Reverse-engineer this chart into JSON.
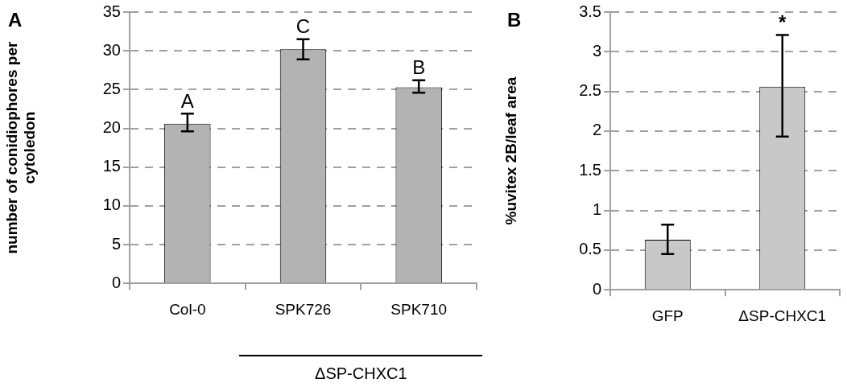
{
  "chart_data": [
    {
      "type": "bar",
      "categories": [
        "Col-0",
        "SPK726",
        "SPK710"
      ],
      "ylabel": "number of conidiophores per cytoledon",
      "values": [
        20.6,
        30.2,
        25.3
      ],
      "color": "#b3b3b3",
      "errors": [
        [
          19.6,
          21.9
        ],
        [
          28.9,
          31.5
        ],
        [
          24.6,
          26.2
        ]
      ],
      "ylim": [
        0,
        35
      ],
      "yticks": [
        0,
        5,
        10,
        15,
        20,
        25,
        30,
        35
      ],
      "grid": "y",
      "annotations": [
        "A",
        "ΔSP-CHXC1",
        {
          "text": "A",
          "x": "Col-0",
          "y": 21.9
        },
        {
          "text": "C",
          "x": "SPK726",
          "y": 31.5
        },
        {
          "text": "B",
          "x": "SPK710",
          "y": 26.2
        }
      ]
    },
    {
      "type": "bar",
      "categories": [
        "GFP",
        "ΔSP-CHXC1"
      ],
      "ylabel": "%uvitex 2B/leaf area",
      "values": [
        0.63,
        2.56
      ],
      "color": "#c8c8c8",
      "errors": [
        [
          0.45,
          0.82
        ],
        [
          1.93,
          3.21
        ]
      ],
      "ylim": [
        0,
        3.5
      ],
      "yticks": [
        0,
        0.5,
        1,
        1.5,
        2,
        2.5,
        3,
        3.5
      ],
      "grid": "y",
      "annotations": [
        "B",
        {
          "text": "*",
          "x": "ΔSP-CHXC1",
          "y": 3.21
        }
      ]
    }
  ]
}
